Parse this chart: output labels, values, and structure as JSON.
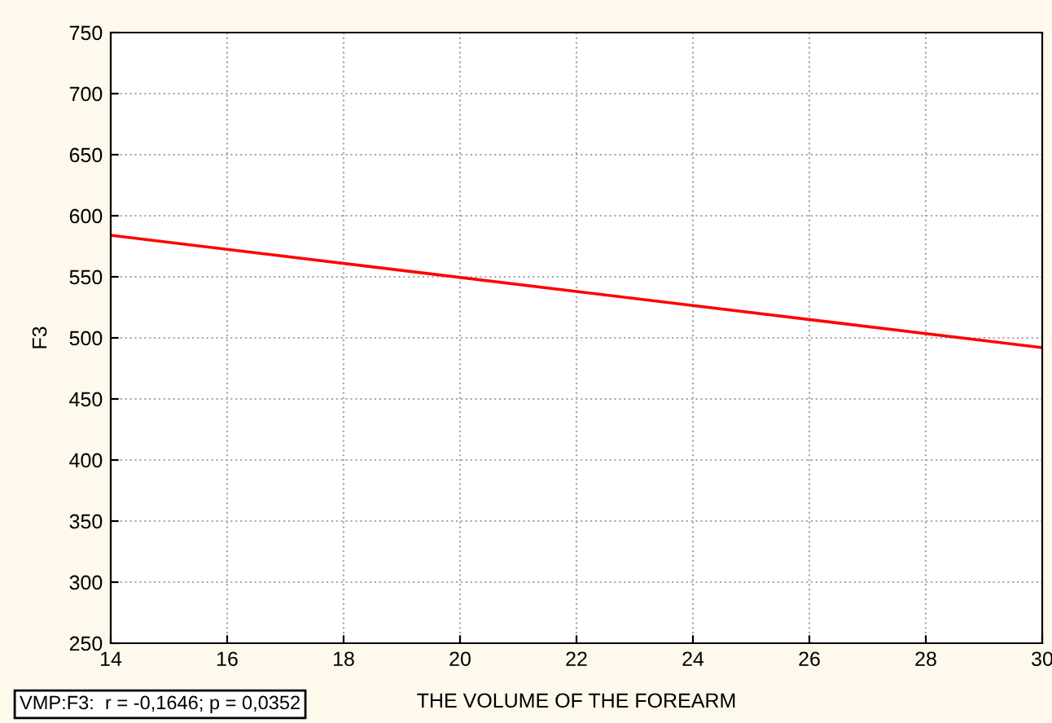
{
  "chart_data": {
    "type": "line",
    "xlabel": "THE VOLUME OF THE FOREARM",
    "ylabel": "F3",
    "x": [
      14,
      30
    ],
    "series": [
      {
        "color": "#ff0000",
        "values": [
          584,
          492
        ]
      }
    ],
    "xlim": [
      14,
      30
    ],
    "xticks": [
      14,
      16,
      18,
      20,
      22,
      24,
      26,
      28,
      30
    ],
    "ylim": [
      250,
      750
    ],
    "yticks": [
      250,
      300,
      350,
      400,
      450,
      500,
      550,
      600,
      650,
      700,
      750
    ],
    "grid": true,
    "marker": "none",
    "line_style": "solid",
    "annotations": [
      "VMP:F3:  r = -0,1646; p = 0,0352"
    ]
  }
}
